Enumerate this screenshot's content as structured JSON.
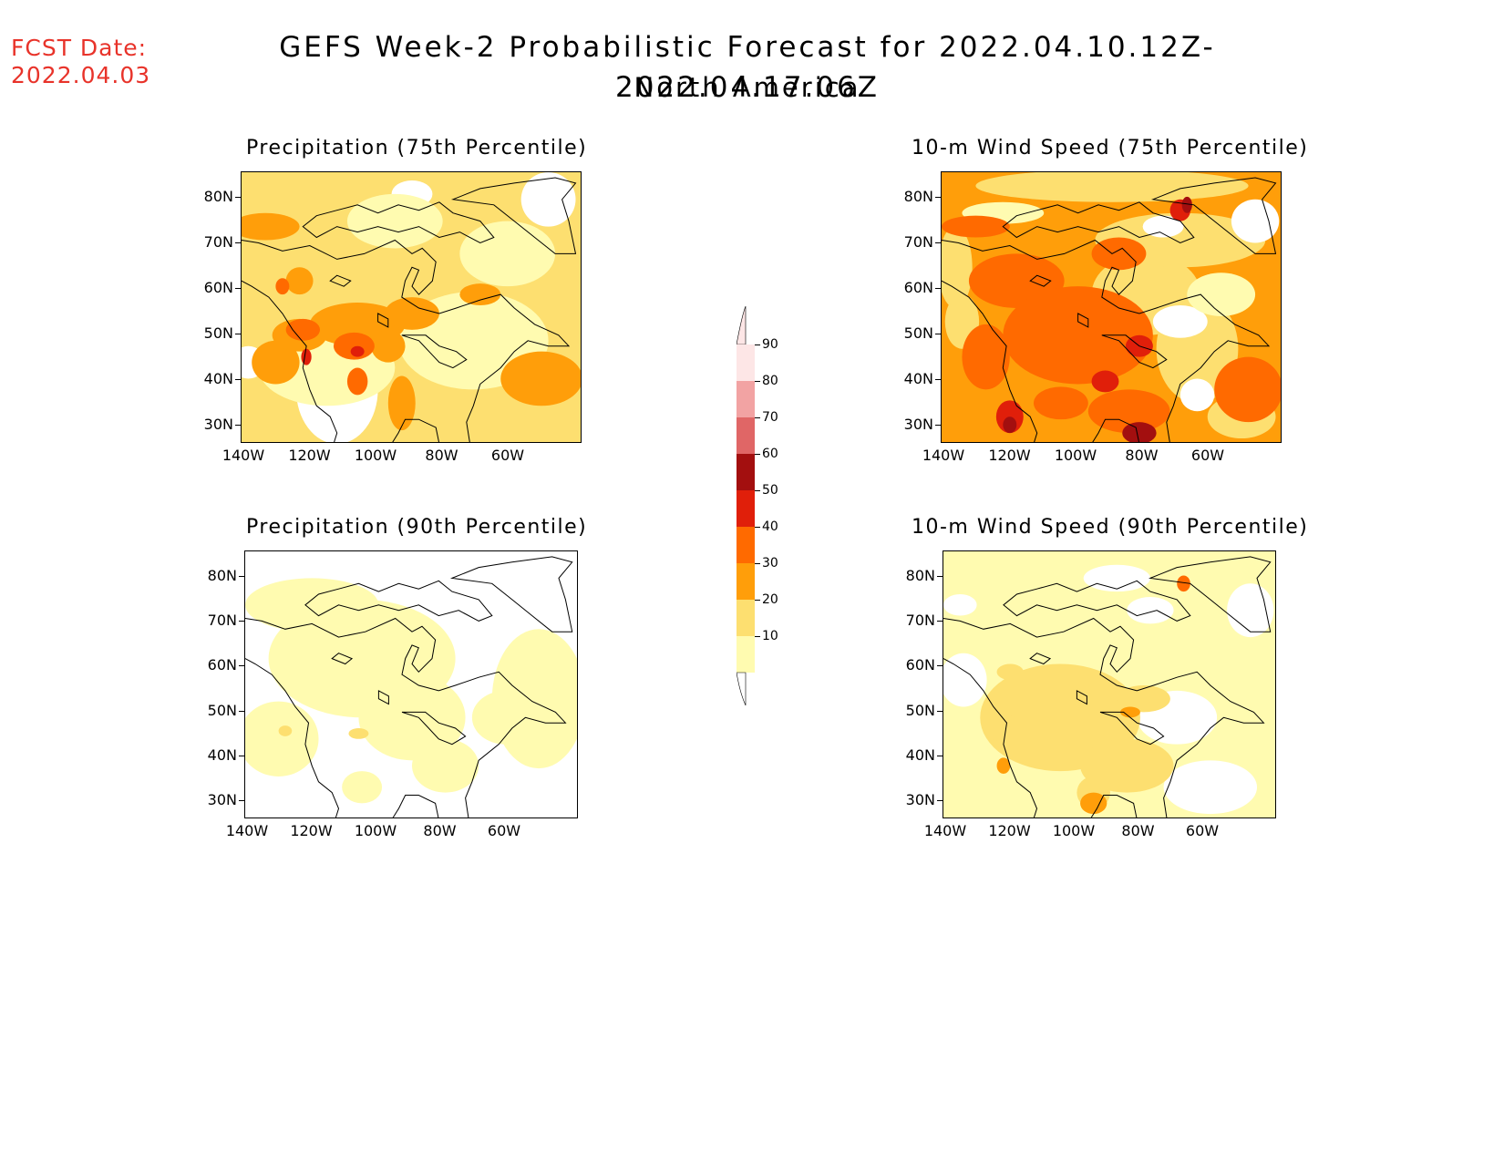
{
  "header": {
    "fcst_label": "FCST Date:",
    "fcst_date": "2022.04.03",
    "title": "GEFS Week-2 Probabilistic Forecast for 2022.04.10.12Z-2022.04.17.06Z",
    "subtitle": "North America"
  },
  "axes": {
    "lat_labels": [
      "80N",
      "70N",
      "60N",
      "50N",
      "40N",
      "30N"
    ],
    "lon_labels": [
      "140W",
      "120W",
      "100W",
      "80W",
      "60W"
    ]
  },
  "panels": [
    {
      "title": "Precipitation (75th Percentile)"
    },
    {
      "title": "10-m Wind Speed (75th Percentile)"
    },
    {
      "title": "Precipitation (90th Percentile)"
    },
    {
      "title": "10-m Wind Speed (90th Percentile)"
    }
  ],
  "colorbar": {
    "levels": [
      "90",
      "80",
      "70",
      "60",
      "50",
      "40",
      "30",
      "20",
      "10"
    ],
    "colors": [
      "#fde6e6",
      "#f2a3a3",
      "#e06666",
      "#a30f0f",
      "#e01f0a",
      "#ff6a00",
      "#ff9e0a",
      "#fddf70",
      "#fffbb0"
    ]
  }
}
